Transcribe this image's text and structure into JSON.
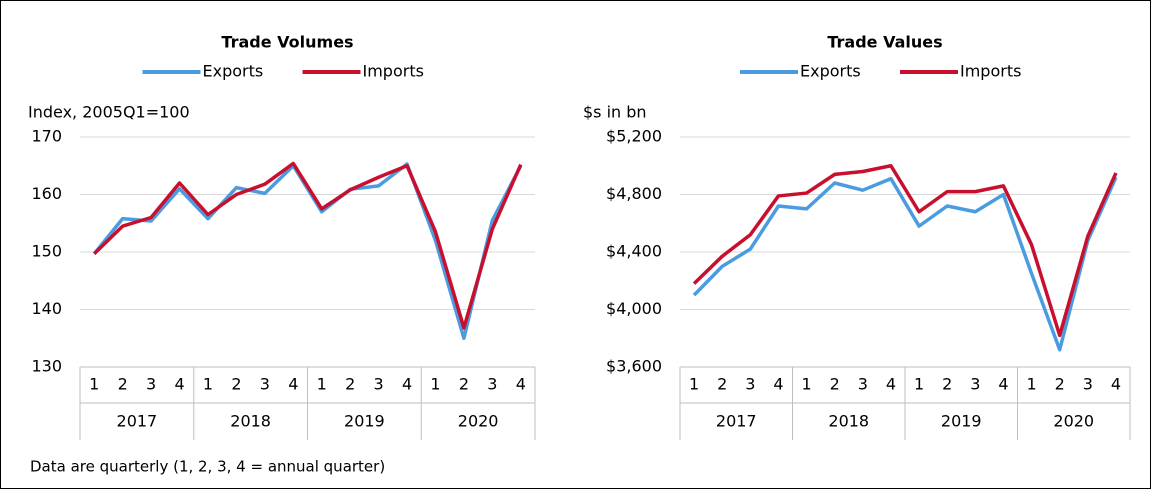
{
  "chart_data": [
    {
      "type": "line",
      "title": "Trade Volumes",
      "y_label": "Index, 2005Q1=100",
      "categories": [
        "1",
        "2",
        "3",
        "4",
        "1",
        "2",
        "3",
        "4",
        "1",
        "2",
        "3",
        "4",
        "1",
        "2",
        "3",
        "4"
      ],
      "year_groups": [
        "2017",
        "2018",
        "2019",
        "2020"
      ],
      "series": [
        {
          "name": "Exports",
          "color": "#4b9be0",
          "values": [
            149.7,
            155.8,
            155.4,
            161,
            155.8,
            161.2,
            160.2,
            165,
            157,
            160.9,
            161.5,
            165.3,
            152,
            135,
            155.5,
            165
          ]
        },
        {
          "name": "Imports",
          "color": "#c8102e",
          "values": [
            149.7,
            154.5,
            156,
            162,
            156.5,
            160,
            161.8,
            165.4,
            157.5,
            160.8,
            163,
            165,
            153.5,
            136.8,
            154,
            165.2
          ]
        }
      ],
      "ylim": [
        130,
        170
      ],
      "yticks": [
        130,
        140,
        150,
        160,
        170
      ],
      "grid": true,
      "legend": "top"
    },
    {
      "type": "line",
      "title": "Trade Values",
      "y_label": "$s in bn",
      "categories": [
        "1",
        "2",
        "3",
        "4",
        "1",
        "2",
        "3",
        "4",
        "1",
        "2",
        "3",
        "4",
        "1",
        "2",
        "3",
        "4"
      ],
      "year_groups": [
        "2017",
        "2018",
        "2019",
        "2020"
      ],
      "series": [
        {
          "name": "Exports",
          "color": "#4b9be0",
          "values": [
            4100,
            4300,
            4420,
            4720,
            4700,
            4880,
            4830,
            4910,
            4580,
            4720,
            4680,
            4800,
            4250,
            3720,
            4480,
            4920
          ]
        },
        {
          "name": "Imports",
          "color": "#c8102e",
          "values": [
            4180,
            4370,
            4520,
            4790,
            4810,
            4940,
            4960,
            5000,
            4680,
            4820,
            4820,
            4860,
            4450,
            3820,
            4510,
            4950
          ]
        }
      ],
      "ylim": [
        3600,
        5200
      ],
      "yticks": [
        {
          "value": 3600,
          "label": "$3,600"
        },
        {
          "value": 4000,
          "label": "$4,000"
        },
        {
          "value": 4400,
          "label": "$4,400"
        },
        {
          "value": 4800,
          "label": "$4,800"
        },
        {
          "value": 5200,
          "label": "$5,200"
        }
      ],
      "grid": true,
      "legend": "top"
    }
  ],
  "footnote": "Data are quarterly (1, 2, 3, 4 = annual quarter)"
}
